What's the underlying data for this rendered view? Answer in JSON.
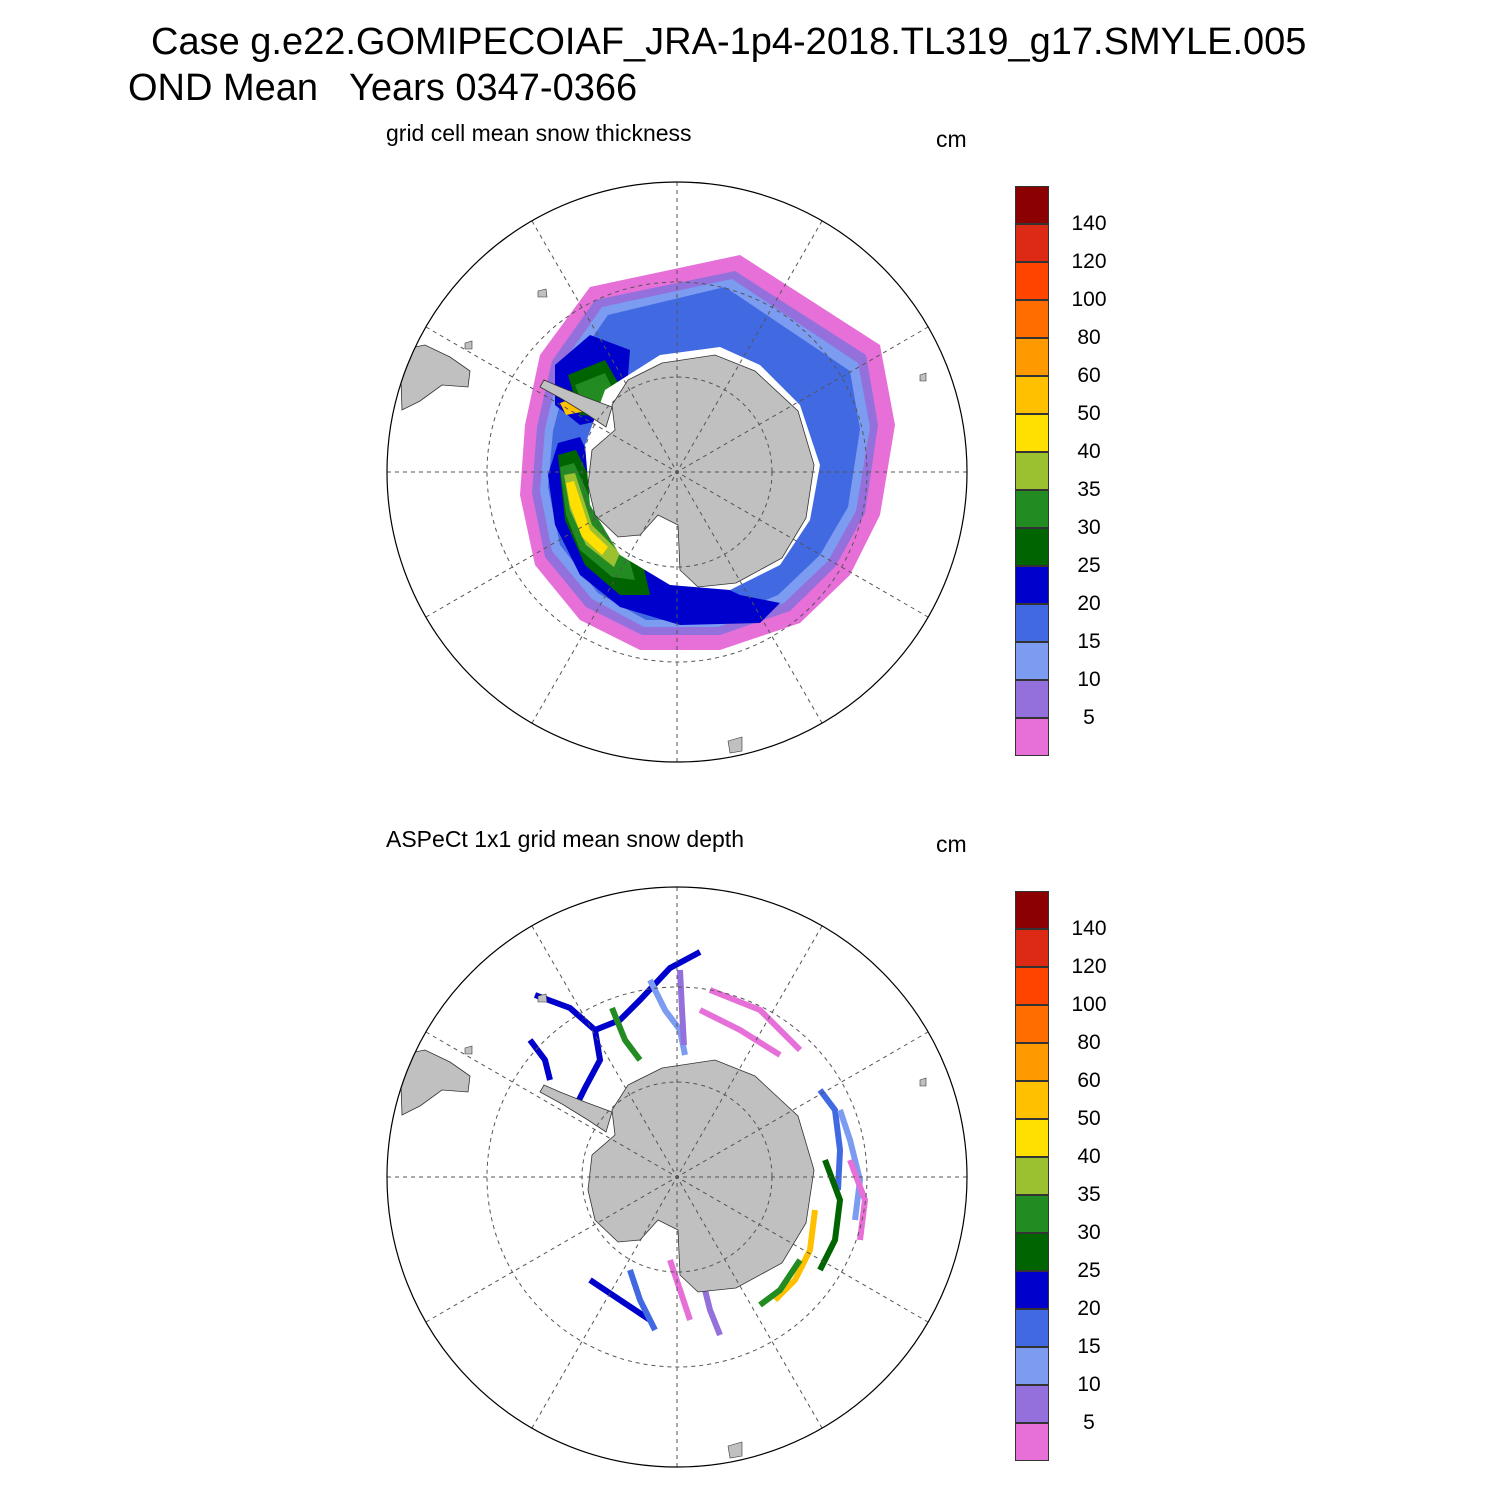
{
  "title": {
    "line1": "Case g.e22.GOMIPECOIAF_JRA-1p4-2018.TL319_g17.SMYLE.005",
    "line2": "OND Mean   Years 0347-0366"
  },
  "colors": {
    "land": "#c0c0c0",
    "grid": "#555555"
  },
  "colorbar": {
    "unit": "cm",
    "labels": [
      "140",
      "120",
      "100",
      "80",
      "60",
      "50",
      "40",
      "35",
      "30",
      "25",
      "20",
      "15",
      "10",
      "5"
    ],
    "colors": [
      "#8b0000",
      "#dd2a15",
      "#ff4400",
      "#ff6c00",
      "#ff9900",
      "#ffc000",
      "#ffe000",
      "#9bc030",
      "#228b22",
      "#006400",
      "#0000cd",
      "#4169e1",
      "#7b9cf0",
      "#9370db",
      "#e670d8"
    ]
  },
  "panels": [
    {
      "id": "model",
      "title": "grid cell mean snow thickness",
      "unit": "cm",
      "type": "contour-filled"
    },
    {
      "id": "obs",
      "title": "ASPeCt 1x1 grid mean snow depth",
      "unit": "cm",
      "type": "gridded-tracks"
    }
  ]
}
